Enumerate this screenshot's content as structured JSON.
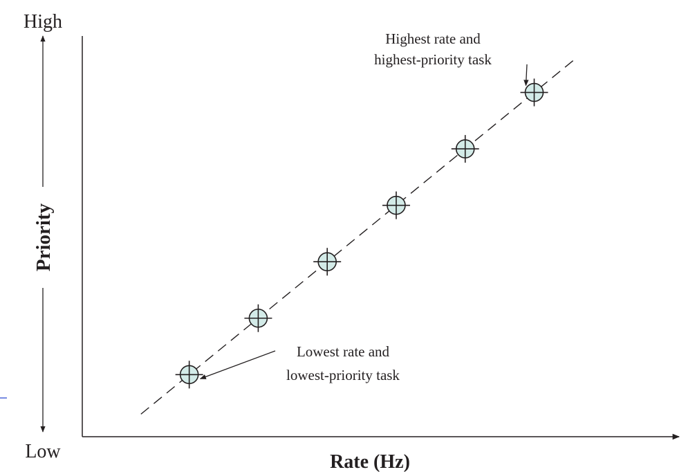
{
  "chart_data": {
    "type": "scatter",
    "xlabel": "Rate (Hz)",
    "ylabel": "Priority",
    "y_axis_top_label": "High",
    "y_axis_bottom_label": "Low",
    "points": [
      {
        "x": 1,
        "y": 1
      },
      {
        "x": 2,
        "y": 2
      },
      {
        "x": 3,
        "y": 3
      },
      {
        "x": 4,
        "y": 4
      },
      {
        "x": 5,
        "y": 5
      },
      {
        "x": 6,
        "y": 6
      }
    ],
    "trend_line": {
      "style": "dashed",
      "x_start": 0.3,
      "x_end": 6.6
    },
    "annotations": [
      {
        "point_index": 5,
        "lines": [
          "Highest rate and",
          "highest-priority task"
        ]
      },
      {
        "point_index": 0,
        "lines": [
          "Lowest rate and",
          "lowest-priority task"
        ]
      }
    ],
    "xlim": [
      -0.55,
      8.1
    ],
    "ylim": [
      -0.1,
      7.0
    ],
    "grid": false,
    "marker_fill": "#d3ebe8",
    "stroke_color": "#231f20",
    "accent_line_color": "#1f3fcf"
  }
}
